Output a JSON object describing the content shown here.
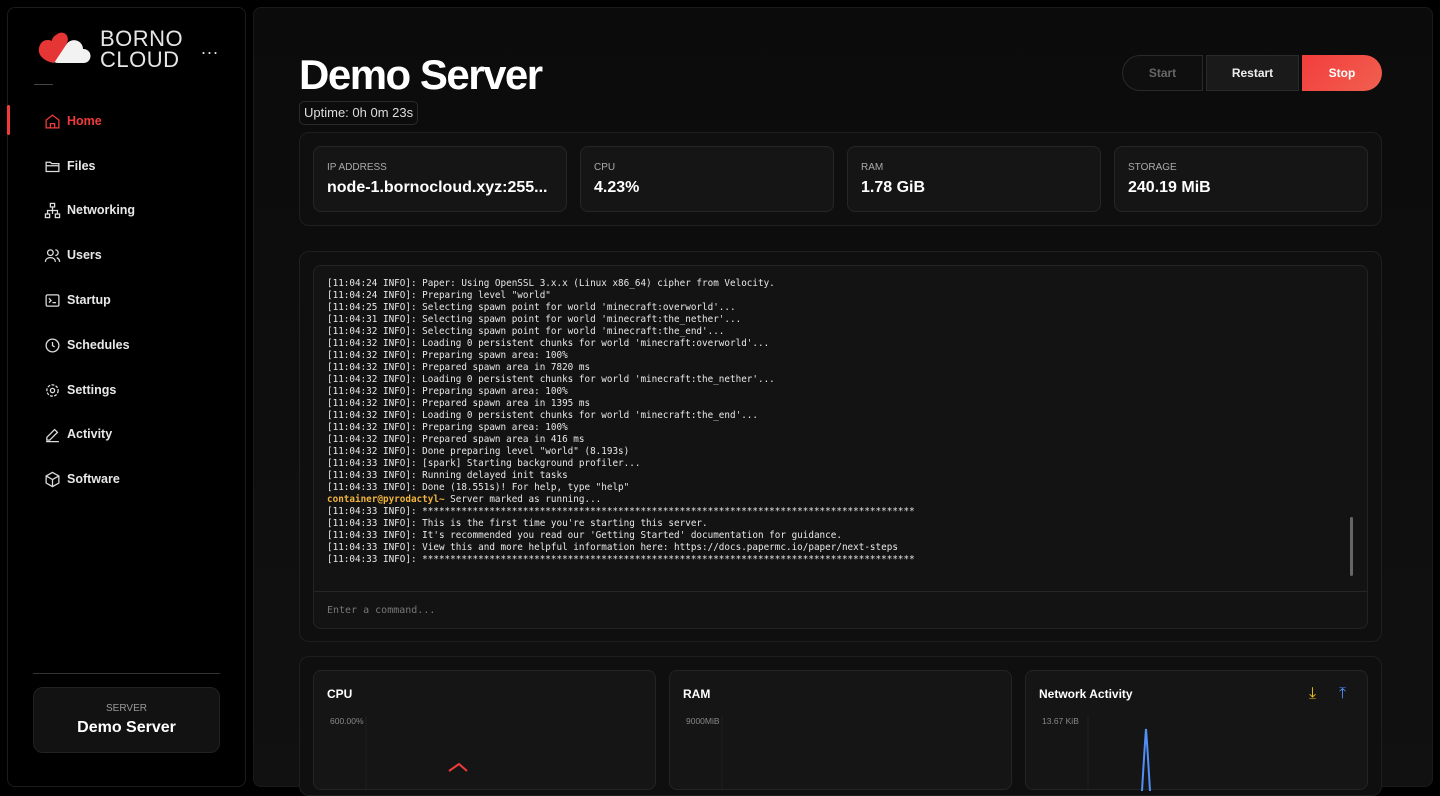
{
  "brand": {
    "line1": "BORNO",
    "line2": "CLOUD",
    "menu": "..."
  },
  "sidebar": {
    "items": [
      {
        "label": "Home",
        "icon": "home-icon"
      },
      {
        "label": "Files",
        "icon": "folder-icon"
      },
      {
        "label": "Networking",
        "icon": "network-icon"
      },
      {
        "label": "Users",
        "icon": "users-icon"
      },
      {
        "label": "Startup",
        "icon": "terminal-icon"
      },
      {
        "label": "Schedules",
        "icon": "clock-icon"
      },
      {
        "label": "Settings",
        "icon": "gear-icon"
      },
      {
        "label": "Activity",
        "icon": "pencil-icon"
      },
      {
        "label": "Software",
        "icon": "box-icon"
      }
    ],
    "active": "Home",
    "server": {
      "label": "SERVER",
      "name": "Demo Server"
    }
  },
  "header": {
    "title": "Demo Server",
    "uptime": "Uptime: 0h 0m 23s",
    "start": "Start",
    "restart": "Restart",
    "stop": "Stop"
  },
  "stats": [
    {
      "label": "IP ADDRESS",
      "value": "node-1.bornocloud.xyz:255..."
    },
    {
      "label": "CPU",
      "value": "4.23%"
    },
    {
      "label": "RAM",
      "value": "1.78 GiB"
    },
    {
      "label": "STORAGE",
      "value": "240.19 MiB"
    }
  ],
  "console": {
    "lines": [
      "[11:04:24 INFO]: Paper: Using OpenSSL 3.x.x (Linux x86_64) cipher from Velocity.",
      "[11:04:24 INFO]: Preparing level \"world\"",
      "[11:04:25 INFO]: Selecting spawn point for world 'minecraft:overworld'...",
      "[11:04:31 INFO]: Selecting spawn point for world 'minecraft:the_nether'...",
      "[11:04:32 INFO]: Selecting spawn point for world 'minecraft:the_end'...",
      "[11:04:32 INFO]: Loading 0 persistent chunks for world 'minecraft:overworld'...",
      "[11:04:32 INFO]: Preparing spawn area: 100%",
      "[11:04:32 INFO]: Prepared spawn area in 7820 ms",
      "[11:04:32 INFO]: Loading 0 persistent chunks for world 'minecraft:the_nether'...",
      "[11:04:32 INFO]: Preparing spawn area: 100%",
      "[11:04:32 INFO]: Prepared spawn area in 1395 ms",
      "[11:04:32 INFO]: Loading 0 persistent chunks for world 'minecraft:the_end'...",
      "[11:04:32 INFO]: Preparing spawn area: 100%",
      "[11:04:32 INFO]: Prepared spawn area in 416 ms",
      "[11:04:32 INFO]: Done preparing level \"world\" (8.193s)",
      "[11:04:33 INFO]: [spark] Starting background profiler...",
      "[11:04:33 INFO]: Running delayed init tasks",
      "[11:04:33 INFO]: Done (18.551s)! For help, type \"help\""
    ],
    "prompt": "container@pyrodactyl~",
    "prompt_text": " Server marked as running...",
    "after": [
      "[11:04:33 INFO]: ****************************************************************************************",
      "[11:04:33 INFO]: This is the first time you're starting this server.",
      "[11:04:33 INFO]: It's recommended you read our 'Getting Started' documentation for guidance.",
      "[11:04:33 INFO]: View this and more helpful information here: https://docs.papermc.io/paper/next-steps",
      "[11:04:33 INFO]: ****************************************************************************************"
    ],
    "placeholder": "Enter a command..."
  },
  "charts": {
    "cpu": {
      "title": "CPU",
      "max": "600.00%",
      "color": "#ef3b3b"
    },
    "ram": {
      "title": "RAM",
      "max": "9000MiB"
    },
    "network": {
      "title": "Network Activity",
      "max": "13.67 KiB",
      "download_color": "#f5c518",
      "upload_color": "#4f8ff7"
    }
  },
  "colors": {
    "accent": "#ef3b3b"
  }
}
